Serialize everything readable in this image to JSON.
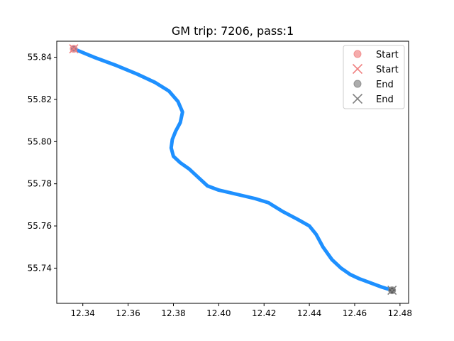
{
  "chart_data": {
    "type": "line",
    "title": "GM trip: 7206, pass:1",
    "xlabel": "",
    "ylabel": "",
    "xlim": [
      12.3285,
      12.4838
    ],
    "ylim": [
      55.7233,
      55.8476
    ],
    "x_ticks": [
      "12.34",
      "12.36",
      "12.38",
      "12.40",
      "12.42",
      "12.44",
      "12.46",
      "12.48"
    ],
    "x_tick_values": [
      12.34,
      12.36,
      12.38,
      12.4,
      12.42,
      12.44,
      12.46,
      12.48
    ],
    "y_ticks": [
      "55.74",
      "55.76",
      "55.78",
      "55.80",
      "55.82",
      "55.84"
    ],
    "y_tick_values": [
      55.74,
      55.76,
      55.78,
      55.8,
      55.82,
      55.84
    ],
    "grid": false,
    "legend_position": "top-right",
    "route_color": "#1e90ff",
    "series": [
      {
        "marker": "line",
        "color": "#1e90ff",
        "x": [
          12.336,
          12.345,
          12.355,
          12.364,
          12.372,
          12.378,
          12.382,
          12.384,
          12.383,
          12.381,
          12.3795,
          12.379,
          12.38,
          12.383,
          12.387,
          12.391,
          12.395,
          12.4,
          12.408,
          12.416,
          12.422,
          12.428,
          12.435,
          12.44,
          12.443,
          12.446,
          12.45,
          12.454,
          12.458,
          12.462,
          12.467,
          12.472,
          12.4765
        ],
        "y": [
          55.844,
          55.84,
          55.836,
          55.832,
          55.828,
          55.824,
          55.819,
          55.814,
          55.809,
          55.805,
          55.801,
          55.797,
          55.793,
          55.79,
          55.787,
          55.783,
          55.779,
          55.777,
          55.775,
          55.773,
          55.771,
          55.767,
          55.763,
          55.76,
          55.756,
          55.75,
          55.744,
          55.74,
          55.737,
          55.735,
          55.733,
          55.731,
          55.7295
        ]
      }
    ],
    "markers": [
      {
        "name": "Start",
        "marker": "circle",
        "color": "#f08080",
        "x": 12.336,
        "y": 55.844
      },
      {
        "name": "Start",
        "marker": "x",
        "color": "#f08080",
        "x": 12.336,
        "y": 55.844
      },
      {
        "name": "End",
        "marker": "circle",
        "color": "#808080",
        "x": 12.4765,
        "y": 55.7295
      },
      {
        "name": "End",
        "marker": "x",
        "color": "#808080",
        "x": 12.4765,
        "y": 55.7295
      }
    ],
    "legend": [
      {
        "label": "Start",
        "marker": "circle",
        "color": "#f08080"
      },
      {
        "label": "Start",
        "marker": "x",
        "color": "#f08080"
      },
      {
        "label": "End",
        "marker": "circle",
        "color": "#808080"
      },
      {
        "label": "End",
        "marker": "x",
        "color": "#808080"
      }
    ]
  }
}
